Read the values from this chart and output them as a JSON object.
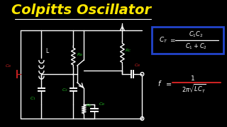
{
  "bg_color": "#000000",
  "title": "Colpitts Oscillator",
  "title_color": "#FFE800",
  "title_fontsize": 14,
  "line_color": "#FFFFFF",
  "comp_colors": {
    "CB": "#CC2222",
    "L": "#FFFFFF",
    "C1": "#22BB22",
    "C2": "#22BB22",
    "RB": "#22BB22",
    "RC": "#22BB22",
    "RE": "#22BB22",
    "CB2": "#CC2222",
    "CB3": "#22BB22"
  },
  "box_edge": "#2244CC",
  "red_line": "#CC2222"
}
